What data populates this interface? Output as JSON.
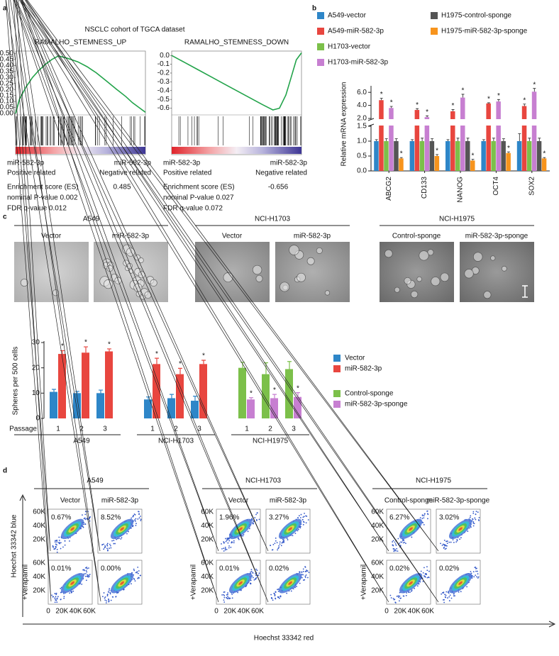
{
  "panel_labels": [
    "a",
    "b",
    "c",
    "d"
  ],
  "panel_a_title": "NSCLC cohort of TGCA dataset",
  "chart_data": [
    {
      "type": "line",
      "title": "RAMALHO_STEMNESS_UP",
      "color": "#22a34a",
      "x": [
        0,
        3,
        8,
        13,
        18,
        23,
        28,
        33,
        40,
        48,
        55,
        62,
        70,
        78,
        85,
        90,
        95,
        100
      ],
      "values": [
        0,
        0.12,
        0.22,
        0.3,
        0.36,
        0.41,
        0.45,
        0.48,
        0.46,
        0.43,
        0.39,
        0.34,
        0.27,
        0.2,
        0.14,
        0.09,
        0.05,
        0.01
      ],
      "xlim": [
        0,
        100
      ],
      "ylim": [
        0,
        0.52
      ],
      "yticks": [
        {
          "value": 0,
          "label": "0.00"
        },
        0.05,
        {
          "value": 0.1,
          "label": "0.10"
        },
        0.15,
        {
          "value": 0.2,
          "label": "0.20"
        },
        0.25,
        {
          "value": 0.3,
          "label": "0.30"
        },
        0.35,
        {
          "value": 0.4,
          "label": "0.40"
        },
        0.45,
        {
          "value": 0.5,
          "label": "0.50"
        }
      ],
      "left_label": "miR-582-3p",
      "left_sublabel": "Positive related",
      "right_label": "miR-582-3p",
      "right_sublabel": "Negative related",
      "stats": [
        "Enrichment score (ES)",
        "nominal P-value 0.002",
        "FDR q-value 0.012"
      ],
      "es": 0.485
    },
    {
      "type": "line",
      "title": "RAMALHO_STEMNESS_DOWN",
      "color": "#22a34a",
      "x": [
        0,
        10,
        20,
        30,
        40,
        50,
        60,
        70,
        78,
        83,
        88,
        92,
        96,
        100
      ],
      "values": [
        0,
        -0.08,
        -0.16,
        -0.24,
        -0.32,
        -0.4,
        -0.48,
        -0.56,
        -0.62,
        -0.6,
        -0.45,
        -0.25,
        -0.05,
        0.03
      ],
      "xlim": [
        0,
        100
      ],
      "ylim": [
        -0.66,
        0.05
      ],
      "yticks": [
        {
          "value": 0,
          "label": "0.0"
        },
        -0.1,
        -0.2,
        -0.3,
        -0.4,
        -0.5,
        -0.6
      ],
      "left_label": "miR-582-3p",
      "left_sublabel": "Positive related",
      "right_label": "miR-582-3p",
      "right_sublabel": "Negative related",
      "stats": [
        "Enrichment score (ES)",
        "nominal P-value 0.027",
        "FDR q-value 0.072"
      ],
      "es": -0.656
    },
    {
      "type": "bar",
      "ylabel": "Relative mRNA expression",
      "categories": [
        "ABCG2",
        "CD133",
        "NANOG",
        "OCT4",
        "SOX2"
      ],
      "ylim": [
        0,
        7
      ],
      "axis_break": [
        1.5,
        2.0
      ],
      "yticks": [
        {
          "value": 0,
          "label": "0.0"
        },
        0.5,
        {
          "value": 1,
          "label": "1.0"
        },
        1.5,
        {
          "value": 2,
          "label": "2.0"
        },
        {
          "value": 4,
          "label": "4.0"
        },
        {
          "value": 6,
          "label": "6.0"
        }
      ],
      "series": [
        {
          "name": "A549-vector",
          "color": "#2e86c8",
          "values": [
            1.0,
            1.0,
            1.0,
            1.0,
            1.0
          ],
          "errors": [
            0.05,
            0.05,
            0.05,
            0.05,
            0.25
          ],
          "labels": [
            null,
            null,
            null,
            null,
            null
          ]
        },
        {
          "name": "A549-miR-582-3p",
          "color": "#e8463f",
          "values": [
            4.8,
            3.3,
            3.1,
            4.3,
            3.9
          ],
          "errors": [
            0.3,
            0.2,
            0.25,
            0.1,
            0.3
          ],
          "labels": [
            "*",
            "*",
            "*",
            "*",
            "*"
          ]
        },
        {
          "name": "H1703-vector",
          "color": "#7cc04a",
          "values": [
            1.0,
            1.0,
            1.0,
            1.0,
            1.0
          ],
          "errors": [
            0.08,
            0.1,
            0.1,
            0.1,
            0.1
          ],
          "labels": [
            null,
            null,
            null,
            null,
            null
          ]
        },
        {
          "name": "H1703-miR-582-3p",
          "color": "#c77fd1",
          "values": [
            3.6,
            2.2,
            5.2,
            4.6,
            6.1
          ],
          "errors": [
            0.25,
            0.2,
            0.5,
            0.3,
            0.5
          ],
          "labels": [
            "*",
            "*",
            "*",
            "*",
            "*"
          ]
        },
        {
          "name": "H1975-control-sponge",
          "color": "#555555",
          "values": [
            1.0,
            1.0,
            1.0,
            1.0,
            1.0
          ],
          "errors": [
            0.08,
            0.08,
            0.1,
            0.08,
            0.1
          ],
          "labels": [
            null,
            null,
            null,
            null,
            null
          ]
        },
        {
          "name": "H1975-miR-582-3p-sponge",
          "color": "#f7941d",
          "values": [
            0.42,
            0.5,
            0.35,
            0.6,
            0.42
          ],
          "errors": [
            0.03,
            0.05,
            0.04,
            0.04,
            0.03
          ],
          "labels": [
            "*",
            "*",
            "*",
            "*",
            "*"
          ]
        }
      ]
    },
    {
      "type": "bar",
      "ylabel": "Spheres per 500 cells",
      "xlabel": "Passage",
      "categories": [
        "1",
        "2",
        "3",
        "1",
        "2",
        "3",
        "1",
        "2",
        "3"
      ],
      "group_names": [
        "A549",
        "NCI-H1703",
        "NCI-H1975"
      ],
      "ylim": [
        0,
        30
      ],
      "yticks": [
        0,
        10,
        20,
        30
      ],
      "series": [
        {
          "name": "Vector",
          "color": "#2e86c8",
          "values": [
            10.5,
            10,
            10,
            7.5,
            8,
            7,
            null,
            null,
            null
          ],
          "errors": [
            1,
            0.7,
            1.2,
            1,
            1.5,
            1.8,
            null,
            null,
            null
          ],
          "labels": [
            null,
            null,
            null,
            null,
            null,
            null,
            null,
            null,
            null
          ]
        },
        {
          "name": "miR-582-3p",
          "color": "#e8463f",
          "values": [
            25.5,
            26,
            26.5,
            21.5,
            17.5,
            21.5,
            null,
            null,
            null
          ],
          "errors": [
            1.3,
            2.3,
            1,
            2.3,
            2.3,
            1.5,
            null,
            null,
            null
          ],
          "labels": [
            "*",
            "*",
            "*",
            "*",
            "*",
            "*",
            null,
            null,
            null
          ]
        },
        {
          "name": "Control-sponge",
          "color": "#7cc04a",
          "values": [
            null,
            null,
            null,
            null,
            null,
            null,
            20,
            17.5,
            19.5
          ],
          "errors": [
            null,
            null,
            null,
            null,
            null,
            null,
            2.2,
            4.5,
            3
          ],
          "labels": [
            null,
            null,
            null,
            null,
            null,
            null,
            null,
            null,
            null
          ]
        },
        {
          "name": "miR-582-3p-sponge",
          "color": "#c77fd1",
          "values": [
            null,
            null,
            null,
            null,
            null,
            null,
            7.5,
            8,
            8.5
          ],
          "errors": [
            null,
            null,
            null,
            null,
            null,
            null,
            0.7,
            1.5,
            1.7
          ],
          "labels": [
            null,
            null,
            null,
            null,
            null,
            null,
            "*",
            "*",
            "*"
          ]
        }
      ]
    }
  ],
  "panel_c": {
    "groups": [
      {
        "name": "A549",
        "conditions": [
          "Vector",
          "miR-582-3p"
        ]
      },
      {
        "name": "NCI-H1703",
        "conditions": [
          "Vector",
          "miR-582-3p"
        ]
      },
      {
        "name": "NCI-H1975",
        "conditions": [
          "Control-sponge",
          "miR-582-3p-sponge"
        ]
      }
    ]
  },
  "panel_d": {
    "ylabel": "Hoechst 33342 blue",
    "xlabel": "Hoechst 33342 red",
    "row_label": "+Verapamil",
    "xticks": [
      "0",
      "20K",
      "40K",
      "60K"
    ],
    "yticks": [
      "20K",
      "40K",
      "60K"
    ],
    "groups": [
      {
        "name": "A549",
        "samples": [
          {
            "name": "Vector",
            "percents": [
              "0.67%",
              "0.01%"
            ]
          },
          {
            "name": "miR-582-3p",
            "percents": [
              "8.52%",
              "0.00%"
            ]
          }
        ]
      },
      {
        "name": "NCI-H1703",
        "samples": [
          {
            "name": "Vector",
            "percents": [
              "1.96%",
              "0.01%"
            ]
          },
          {
            "name": "miR-582-3p",
            "percents": [
              "3.27%",
              "0.02%"
            ]
          }
        ]
      },
      {
        "name": "NCI-H1975",
        "samples": [
          {
            "name": "Control-sponge",
            "percents": [
              "6.27%",
              "0.02%"
            ]
          },
          {
            "name": "miR-582-3p-sponge",
            "percents": [
              "3.02%",
              "0.02%"
            ]
          }
        ]
      }
    ]
  }
}
